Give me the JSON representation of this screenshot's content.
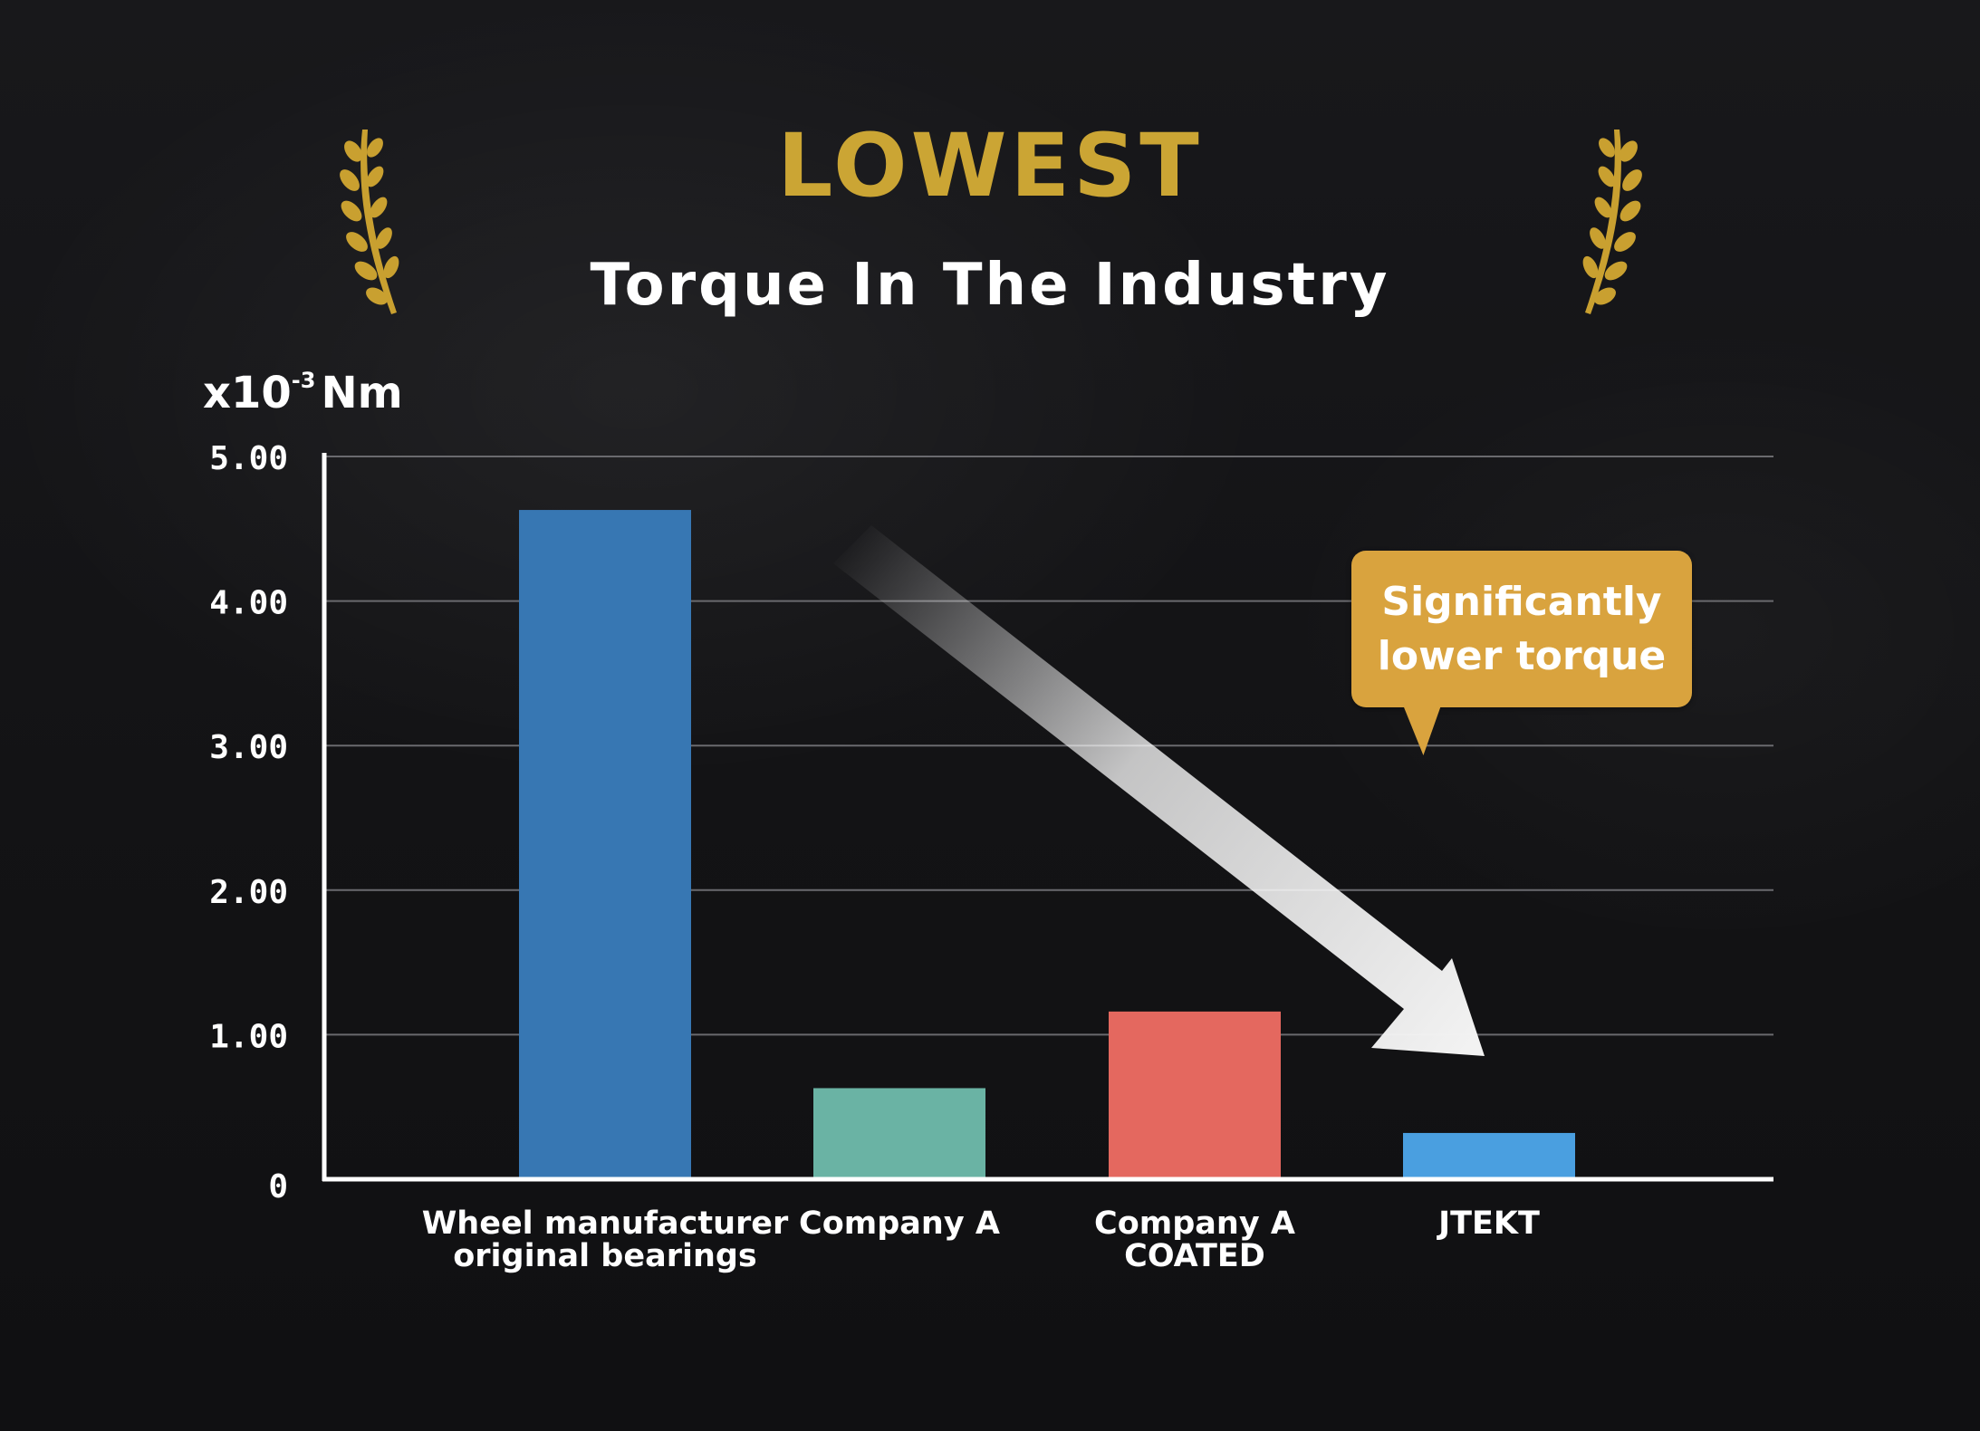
{
  "header": {
    "title": "LOWEST",
    "subtitle": "Torque In The Industry"
  },
  "colors": {
    "gold": "#cba534",
    "callout": "#d9a33e",
    "background": "#121214"
  },
  "icons": {
    "left": "laurel-branch-icon",
    "right": "laurel-branch-icon"
  },
  "callout": {
    "line1": "Significantly",
    "line2": "lower torque"
  },
  "chart_data": {
    "type": "bar",
    "title": "LOWEST",
    "subtitle": "Torque In The Industry",
    "unit_base": "x10",
    "unit_exp": "-3",
    "unit_name": "Nm",
    "xlabel": "",
    "ylabel": "x10-3 Nm",
    "ylim": [
      0,
      5
    ],
    "yticks": [
      0,
      1,
      2,
      3,
      4,
      5
    ],
    "ytick_labels": [
      "0",
      "1.00",
      "2.00",
      "3.00",
      "4.00",
      "5.00"
    ],
    "grid": true,
    "legend": "none",
    "categories": [
      {
        "lines": [
          "Wheel manufacturer",
          "original bearings"
        ],
        "color": "#3777b3"
      },
      {
        "lines": [
          "Company A"
        ],
        "color": "#6ab3a4"
      },
      {
        "lines": [
          "Company A",
          "COATED"
        ],
        "color": "#e4685f"
      },
      {
        "lines": [
          "JTEKT"
        ],
        "color": "#4a9fe0"
      }
    ],
    "values": [
      4.63,
      0.63,
      1.16,
      0.32
    ],
    "annotations": [
      "Significantly lower torque"
    ]
  }
}
